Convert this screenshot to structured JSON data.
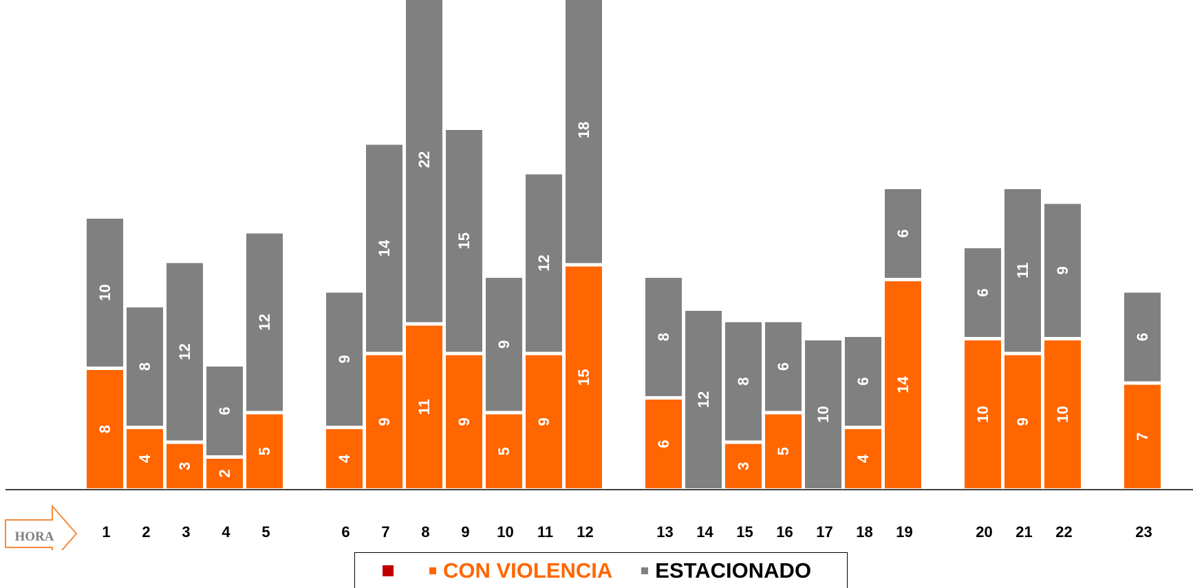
{
  "chart_data": {
    "type": "bar",
    "stacked": true,
    "x_axis_title": "HORA",
    "categories": [
      "1",
      "2",
      "3",
      "4",
      "5",
      "6",
      "7",
      "8",
      "9",
      "10",
      "11",
      "12",
      "13",
      "14",
      "15",
      "16",
      "17",
      "18",
      "19",
      "20",
      "21",
      "22",
      "23"
    ],
    "series": [
      {
        "name": "CON VIOLENCIA",
        "color": "#ff6600",
        "values": [
          8,
          4,
          3,
          2,
          5,
          4,
          9,
          11,
          9,
          5,
          9,
          15,
          6,
          0,
          3,
          5,
          0,
          4,
          14,
          10,
          9,
          10,
          7
        ]
      },
      {
        "name": "ESTACIONADO",
        "color": "#808080",
        "values": [
          10,
          8,
          12,
          6,
          12,
          9,
          14,
          22,
          15,
          9,
          12,
          18,
          8,
          12,
          8,
          6,
          10,
          6,
          6,
          6,
          11,
          9,
          6
        ]
      }
    ],
    "groups": [
      [
        1,
        2,
        3,
        4,
        5
      ],
      [
        6,
        7,
        8,
        9,
        10,
        11,
        12
      ],
      [
        13,
        14,
        15,
        16,
        17,
        18,
        19
      ],
      [
        20,
        21,
        22
      ],
      [
        23
      ]
    ],
    "grid": false,
    "legend_position": "bottom"
  },
  "legend": {
    "extra_marker_color": "#c00000",
    "items": [
      {
        "label": "CON VIOLENCIA",
        "color": "#ff6600"
      },
      {
        "label": "ESTACIONADO",
        "color": "#808080"
      }
    ]
  }
}
